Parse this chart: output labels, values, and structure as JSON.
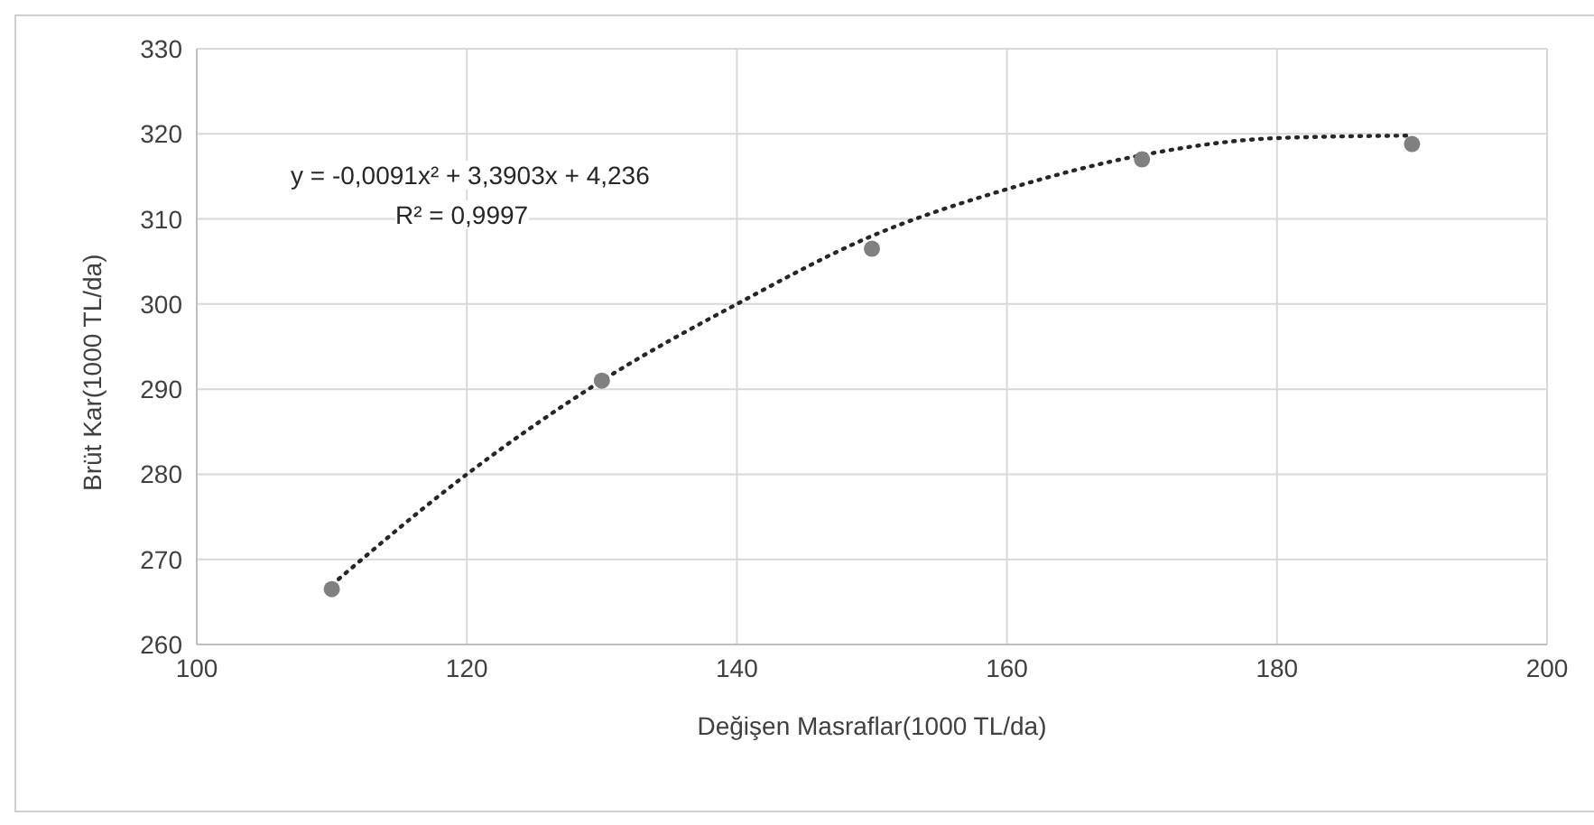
{
  "chart_data": {
    "type": "scatter",
    "xlabel": "Değişen Masraflar(1000 TL/da)",
    "ylabel": "Brüt Kar(1000 TL/da)",
    "xlim": [
      100,
      200
    ],
    "xticks": [
      100,
      120,
      140,
      160,
      180,
      200
    ],
    "ylim": [
      260,
      330
    ],
    "yticks": [
      260,
      270,
      280,
      290,
      300,
      310,
      320,
      330
    ],
    "grid": true,
    "marker": "circle",
    "series": [
      {
        "color": "#808080",
        "x": [
          110,
          130,
          150,
          170,
          190
        ],
        "values": [
          266.5,
          291,
          306.5,
          317,
          318.8
        ]
      },
      {
        "type": "line",
        "color": "#262626",
        "line_style": "dotted",
        "marker": "none",
        "x": [
          110,
          120,
          130,
          140,
          150,
          160,
          170,
          180,
          190
        ],
        "values": [
          267,
          280,
          291,
          300,
          308,
          313.5,
          317.5,
          319.5,
          319.8
        ]
      }
    ],
    "annotations": [
      "y = -0,0091x² + 3,3903x + 4,236",
      "R² = 0,9997"
    ]
  }
}
